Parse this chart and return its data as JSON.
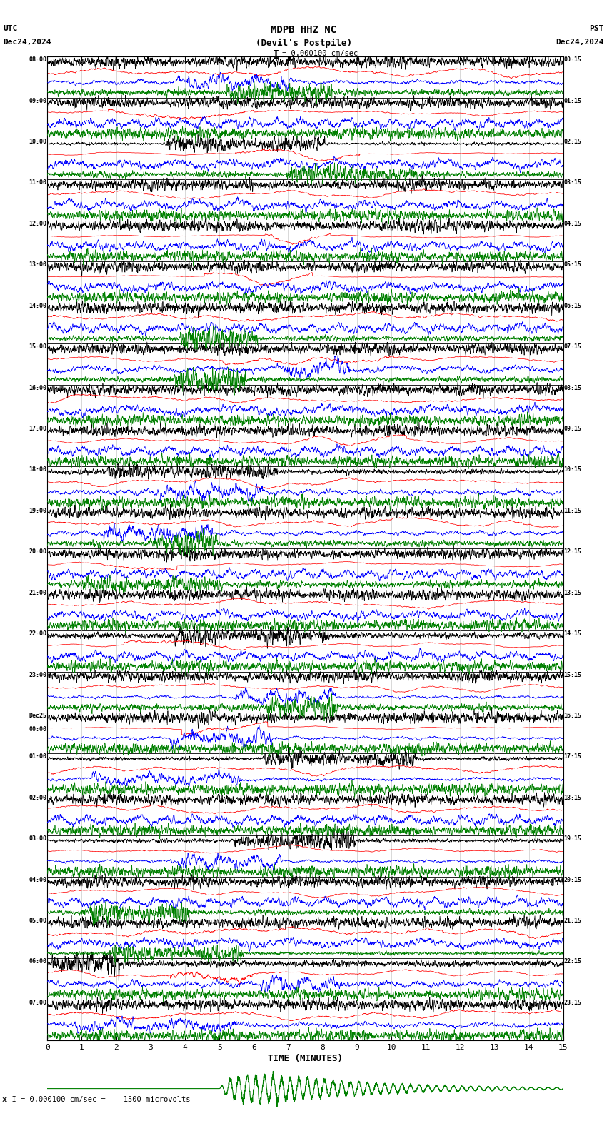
{
  "title_line1": "MDPB HHZ NC",
  "title_line2": "(Devil's Postpile)",
  "scale_label": "I = 0.000100 cm/sec",
  "left_label_top": "UTC",
  "left_label_date": "Dec24,2024",
  "right_label_top": "PST",
  "right_label_date": "Dec24,2024",
  "xlabel": "TIME (MINUTES)",
  "footer_label": "x I = 0.000100 cm/sec =    1500 microvolts",
  "utc_labels": [
    "08:00",
    "09:00",
    "10:00",
    "11:00",
    "12:00",
    "13:00",
    "14:00",
    "15:00",
    "16:00",
    "17:00",
    "18:00",
    "19:00",
    "20:00",
    "21:00",
    "22:00",
    "23:00",
    "Dec25\n00:00",
    "01:00",
    "02:00",
    "03:00",
    "04:00",
    "05:00",
    "06:00",
    "07:00"
  ],
  "pst_labels": [
    "00:15",
    "01:15",
    "02:15",
    "03:15",
    "04:15",
    "05:15",
    "06:15",
    "07:15",
    "08:15",
    "09:15",
    "10:15",
    "11:15",
    "12:15",
    "13:15",
    "14:15",
    "15:15",
    "16:15",
    "17:15",
    "18:15",
    "19:15",
    "20:15",
    "21:15",
    "22:15",
    "23:15"
  ],
  "n_rows": 24,
  "n_traces_per_row": 4,
  "colors": [
    "black",
    "red",
    "blue",
    "green"
  ],
  "bg_color": "white",
  "grid_color": "black",
  "minutes": 15,
  "seed": 12345
}
